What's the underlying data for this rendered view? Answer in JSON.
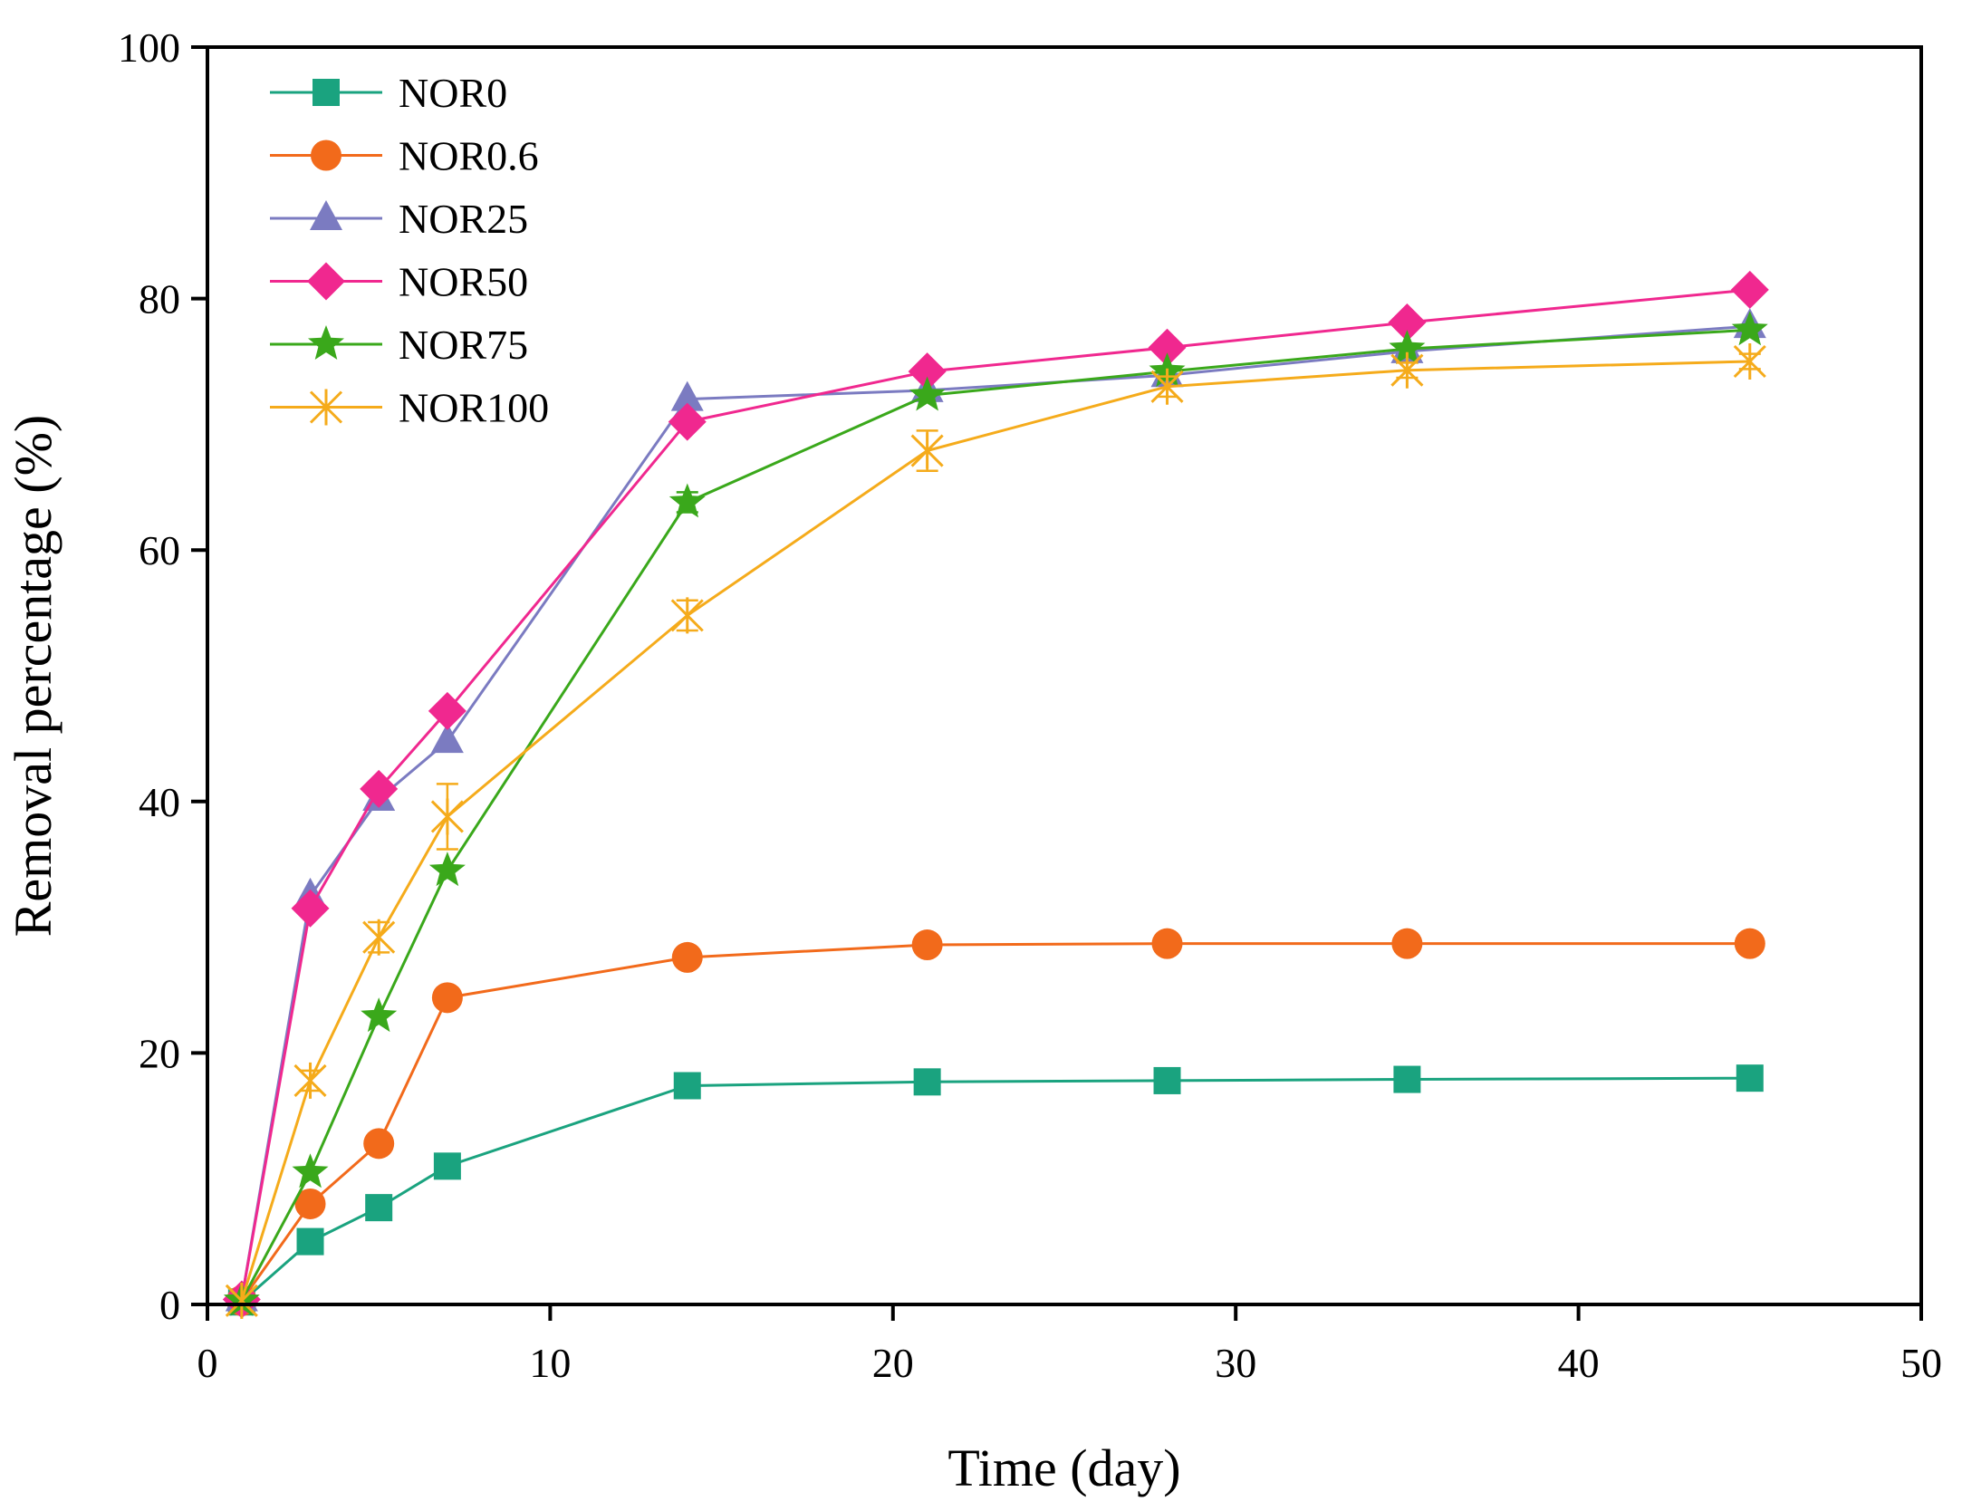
{
  "chart_data": {
    "type": "line",
    "xlabel": "Time (day)",
    "ylabel": "Removal percentage (%)",
    "xlim": [
      0,
      50
    ],
    "ylim": [
      0,
      100
    ],
    "xticks": [
      0,
      10,
      20,
      30,
      40,
      50
    ],
    "yticks": [
      0,
      20,
      40,
      60,
      80,
      100
    ],
    "grid": false,
    "legend_position": "top-left",
    "x": [
      1,
      3,
      5,
      7,
      14,
      21,
      28,
      35,
      45
    ],
    "series": [
      {
        "name": "NOR0",
        "marker": "square",
        "color": "#1aa37f",
        "values": [
          0.2,
          5.0,
          7.7,
          11.0,
          17.4,
          17.7,
          17.8,
          17.9,
          18.0
        ],
        "errors": [
          0,
          0,
          0,
          0,
          0,
          0,
          0,
          0,
          0
        ]
      },
      {
        "name": "NOR0.6",
        "marker": "circle",
        "color": "#f26a1b",
        "values": [
          0.3,
          8.0,
          12.8,
          24.4,
          27.6,
          28.6,
          28.7,
          28.7,
          28.7
        ],
        "errors": [
          0,
          0,
          0,
          0,
          0,
          0,
          0,
          0,
          0
        ]
      },
      {
        "name": "NOR25",
        "marker": "triangle",
        "color": "#7b7bc1",
        "values": [
          0.4,
          32.5,
          40.2,
          44.8,
          72.0,
          72.7,
          73.9,
          75.8,
          77.8
        ],
        "errors": [
          0,
          0,
          0,
          0,
          0,
          0,
          0,
          0,
          0
        ]
      },
      {
        "name": "NOR50",
        "marker": "diamond",
        "color": "#f0288f",
        "values": [
          0.4,
          31.5,
          41.0,
          47.2,
          70.2,
          74.2,
          76.1,
          78.1,
          80.7
        ],
        "errors": [
          0,
          0,
          0,
          0,
          0,
          0,
          0,
          0,
          0
        ]
      },
      {
        "name": "NOR75",
        "marker": "star",
        "color": "#3aa81b",
        "values": [
          0.3,
          10.5,
          22.9,
          34.5,
          63.8,
          72.3,
          74.2,
          76.0,
          77.5
        ],
        "errors": [
          0,
          0,
          0,
          0,
          0.8,
          0,
          0,
          0,
          0
        ]
      },
      {
        "name": "NOR100",
        "marker": "asterisk",
        "color": "#f5ab1b",
        "values": [
          0.3,
          17.8,
          29.2,
          38.8,
          54.8,
          67.9,
          73.0,
          74.3,
          75.0
        ],
        "errors": [
          0,
          0.8,
          1.2,
          2.6,
          1.2,
          1.6,
          0.8,
          0.6,
          0.6
        ]
      }
    ]
  }
}
